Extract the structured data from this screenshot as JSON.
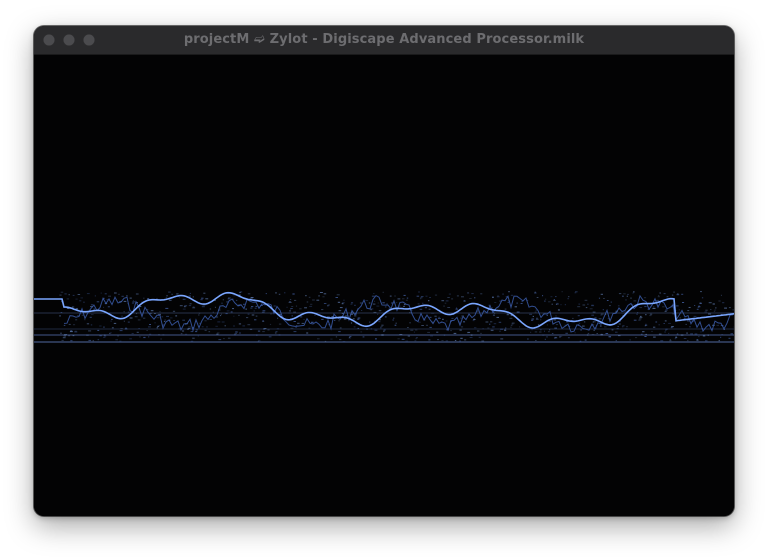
{
  "window": {
    "title": "projectM ➫ Zylot - Digiscape Advanced Processor.milk"
  },
  "traffic_lights": [
    "close",
    "minimize",
    "zoom"
  ],
  "colors": {
    "waveform": "#7aa6ff",
    "waveform_dim": "#3a5aa8",
    "background": "#030304",
    "titlebar": "#2a2a2c"
  }
}
